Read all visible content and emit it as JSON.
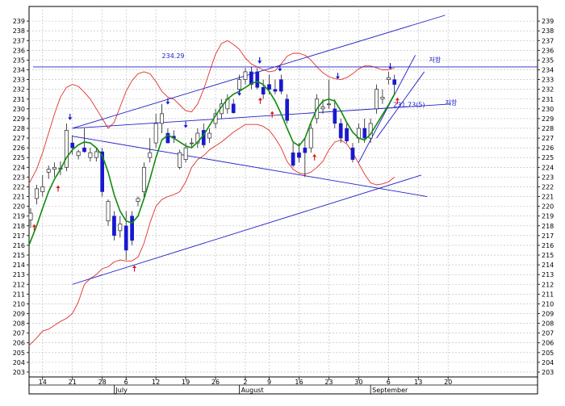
{
  "chart_data": {
    "type": "candlestick",
    "y_range": [
      202.5,
      240.5
    ],
    "y_ticks": [
      203,
      204,
      205,
      206,
      207,
      208,
      209,
      210,
      211,
      212,
      213,
      214,
      215,
      216,
      217,
      218,
      219,
      220,
      221,
      222,
      223,
      224,
      225,
      226,
      227,
      228,
      229,
      230,
      231,
      232,
      233,
      234,
      235,
      236,
      237,
      238,
      239
    ],
    "x_range": [
      0,
      85
    ],
    "x_ticks": [
      {
        "x": 2,
        "label": "14"
      },
      {
        "x": 7,
        "label": "21"
      },
      {
        "x": 12,
        "label": "28"
      },
      {
        "x": 16,
        "label": "6"
      },
      {
        "x": 21,
        "label": "12"
      },
      {
        "x": 26,
        "label": "19"
      },
      {
        "x": 31,
        "label": "26"
      },
      {
        "x": 36,
        "label": "2"
      },
      {
        "x": 40,
        "label": "9"
      },
      {
        "x": 45,
        "label": "16"
      },
      {
        "x": 50,
        "label": "23"
      },
      {
        "x": 55,
        "label": "30"
      },
      {
        "x": 60,
        "label": "6"
      },
      {
        "x": 65,
        "label": "13"
      },
      {
        "x": 70,
        "label": "20"
      }
    ],
    "months": [
      {
        "x": 14,
        "label": "July"
      },
      {
        "x": 35,
        "label": "August"
      },
      {
        "x": 57,
        "label": "September"
      }
    ],
    "candles": [
      {
        "x": 0,
        "o": 218.6,
        "h": 219.8,
        "l": 217.8,
        "c": 219.3
      },
      {
        "x": 1,
        "o": 220.8,
        "h": 222.2,
        "l": 220.2,
        "c": 221.8
      },
      {
        "x": 2,
        "o": 221.5,
        "h": 223.2,
        "l": 221.0,
        "c": 222.0
      },
      {
        "x": 3,
        "o": 223.5,
        "h": 224.2,
        "l": 222.8,
        "c": 223.8
      },
      {
        "x": 4,
        "o": 223.8,
        "h": 224.5,
        "l": 223.0,
        "c": 224.0
      },
      {
        "x": 5,
        "o": 223.8,
        "h": 224.6,
        "l": 223.2,
        "c": 223.9
      },
      {
        "x": 6,
        "o": 224.0,
        "h": 228.5,
        "l": 223.6,
        "c": 227.8
      },
      {
        "x": 7,
        "o": 226.5,
        "h": 227.3,
        "l": 225.3,
        "c": 226.0
      },
      {
        "x": 8,
        "o": 225.2,
        "h": 225.8,
        "l": 224.8,
        "c": 225.6
      },
      {
        "x": 9,
        "o": 226.0,
        "h": 228.0,
        "l": 225.5,
        "c": 225.6
      },
      {
        "x": 10,
        "o": 225.0,
        "h": 226.0,
        "l": 224.6,
        "c": 225.5
      },
      {
        "x": 11,
        "o": 225.0,
        "h": 226.0,
        "l": 224.6,
        "c": 225.6
      },
      {
        "x": 12,
        "o": 225.6,
        "h": 226.0,
        "l": 221.0,
        "c": 221.5
      },
      {
        "x": 13,
        "o": 218.5,
        "h": 220.7,
        "l": 218.0,
        "c": 220.5
      },
      {
        "x": 14,
        "o": 219.0,
        "h": 219.5,
        "l": 216.5,
        "c": 217.0
      },
      {
        "x": 15,
        "o": 217.5,
        "h": 219.0,
        "l": 216.8,
        "c": 218.2
      },
      {
        "x": 16,
        "o": 218.0,
        "h": 219.5,
        "l": 214.5,
        "c": 215.5
      },
      {
        "x": 17,
        "o": 219.0,
        "h": 219.5,
        "l": 216.0,
        "c": 216.5
      },
      {
        "x": 18,
        "o": 220.5,
        "h": 221.0,
        "l": 220.0,
        "c": 220.8
      },
      {
        "x": 19,
        "o": 221.5,
        "h": 224.5,
        "l": 221.0,
        "c": 224.0
      },
      {
        "x": 20,
        "o": 225.0,
        "h": 227.0,
        "l": 224.5,
        "c": 225.5
      },
      {
        "x": 21,
        "o": 226.5,
        "h": 229.5,
        "l": 226.0,
        "c": 228.5
      },
      {
        "x": 22,
        "o": 228.5,
        "h": 230.5,
        "l": 227.5,
        "c": 229.5
      },
      {
        "x": 23,
        "o": 227.5,
        "h": 228.0,
        "l": 226.5,
        "c": 226.5
      },
      {
        "x": 24,
        "o": 227.2,
        "h": 227.8,
        "l": 226.5,
        "c": 227.0
      },
      {
        "x": 25,
        "o": 224.0,
        "h": 225.8,
        "l": 223.8,
        "c": 225.5
      },
      {
        "x": 26,
        "o": 224.8,
        "h": 226.5,
        "l": 224.5,
        "c": 226.0
      },
      {
        "x": 27,
        "o": 226.5,
        "h": 227.0,
        "l": 226.0,
        "c": 226.5
      },
      {
        "x": 28,
        "o": 226.5,
        "h": 228.0,
        "l": 226.0,
        "c": 227.5
      },
      {
        "x": 29,
        "o": 227.8,
        "h": 228.5,
        "l": 226.0,
        "c": 226.3
      },
      {
        "x": 30,
        "o": 227.0,
        "h": 228.0,
        "l": 226.5,
        "c": 227.5
      },
      {
        "x": 31,
        "o": 228.5,
        "h": 230.0,
        "l": 228.0,
        "c": 229.5
      },
      {
        "x": 32,
        "o": 229.5,
        "h": 231.0,
        "l": 229.0,
        "c": 230.5
      },
      {
        "x": 33,
        "o": 230.0,
        "h": 231.5,
        "l": 229.5,
        "c": 231.0
      },
      {
        "x": 34,
        "o": 230.5,
        "h": 231.0,
        "l": 229.5,
        "c": 229.6
      },
      {
        "x": 35,
        "o": 232.0,
        "h": 233.5,
        "l": 231.5,
        "c": 233.0
      },
      {
        "x": 36,
        "o": 233.0,
        "h": 234.2,
        "l": 232.5,
        "c": 233.8
      },
      {
        "x": 37,
        "o": 233.8,
        "h": 234.3,
        "l": 232.0,
        "c": 232.5
      },
      {
        "x": 38,
        "o": 233.8,
        "h": 234.2,
        "l": 232.0,
        "c": 232.2
      },
      {
        "x": 39,
        "o": 232.2,
        "h": 233.0,
        "l": 231.0,
        "c": 231.5
      },
      {
        "x": 40,
        "o": 232.5,
        "h": 233.5,
        "l": 231.5,
        "c": 232.0
      },
      {
        "x": 41,
        "o": 232.0,
        "h": 233.0,
        "l": 231.5,
        "c": 231.8
      },
      {
        "x": 42,
        "o": 233.0,
        "h": 233.5,
        "l": 231.5,
        "c": 231.8
      },
      {
        "x": 43,
        "o": 231.0,
        "h": 231.5,
        "l": 228.5,
        "c": 228.8
      },
      {
        "x": 44,
        "o": 225.5,
        "h": 226.5,
        "l": 224.0,
        "c": 224.2
      },
      {
        "x": 45,
        "o": 225.5,
        "h": 226.5,
        "l": 224.5,
        "c": 225.0
      },
      {
        "x": 46,
        "o": 226.0,
        "h": 227.0,
        "l": 223.0,
        "c": 225.5
      },
      {
        "x": 47,
        "o": 226.0,
        "h": 228.5,
        "l": 225.5,
        "c": 228.0
      },
      {
        "x": 48,
        "o": 229.0,
        "h": 231.5,
        "l": 228.5,
        "c": 231.0
      },
      {
        "x": 49,
        "o": 230.0,
        "h": 231.0,
        "l": 229.5,
        "c": 230.2
      },
      {
        "x": 50,
        "o": 230.5,
        "h": 233.0,
        "l": 230.0,
        "c": 230.5
      },
      {
        "x": 51,
        "o": 230.0,
        "h": 231.0,
        "l": 228.0,
        "c": 228.5
      },
      {
        "x": 52,
        "o": 228.5,
        "h": 229.0,
        "l": 226.5,
        "c": 227.0
      },
      {
        "x": 53,
        "o": 228.0,
        "h": 228.5,
        "l": 226.5,
        "c": 226.7
      },
      {
        "x": 54,
        "o": 226.0,
        "h": 226.5,
        "l": 224.5,
        "c": 224.8
      },
      {
        "x": 55,
        "o": 227.0,
        "h": 228.5,
        "l": 226.5,
        "c": 228.0
      },
      {
        "x": 56,
        "o": 228.0,
        "h": 229.0,
        "l": 226.5,
        "c": 227.0
      },
      {
        "x": 57,
        "o": 227.0,
        "h": 229.0,
        "l": 226.5,
        "c": 228.5
      },
      {
        "x": 58,
        "o": 230.0,
        "h": 232.5,
        "l": 229.5,
        "c": 232.0
      },
      {
        "x": 59,
        "o": 231.0,
        "h": 232.0,
        "l": 230.5,
        "c": 231.2
      },
      {
        "x": 60,
        "o": 233.0,
        "h": 233.8,
        "l": 232.5,
        "c": 233.2
      },
      {
        "x": 61,
        "o": 233.0,
        "h": 233.5,
        "l": 231.5,
        "c": 232.5
      }
    ],
    "moving_average": [
      [
        -0.3,
        216.0
      ],
      [
        1,
        218.0
      ],
      [
        2,
        219.8
      ],
      [
        3,
        221.5
      ],
      [
        4,
        222.8
      ],
      [
        5,
        223.8
      ],
      [
        6,
        225.0
      ],
      [
        7,
        225.8
      ],
      [
        8,
        226.3
      ],
      [
        9,
        226.6
      ],
      [
        10,
        226.5
      ],
      [
        11,
        226.0
      ],
      [
        12,
        225.2
      ],
      [
        13,
        223.5
      ],
      [
        14,
        221.2
      ],
      [
        15,
        219.5
      ],
      [
        16,
        218.5
      ],
      [
        17,
        218.3
      ],
      [
        18,
        219.0
      ],
      [
        19,
        220.8
      ],
      [
        20,
        222.8
      ],
      [
        21,
        225.0
      ],
      [
        22,
        226.8
      ],
      [
        23,
        227.3
      ],
      [
        24,
        227.0
      ],
      [
        25,
        226.6
      ],
      [
        26,
        226.2
      ],
      [
        27,
        226.0
      ],
      [
        28,
        226.6
      ],
      [
        29,
        227.3
      ],
      [
        30,
        228.3
      ],
      [
        31,
        229.3
      ],
      [
        32,
        230.2
      ],
      [
        33,
        231.0
      ],
      [
        34,
        231.5
      ],
      [
        35,
        231.8
      ],
      [
        36,
        232.2
      ],
      [
        37,
        232.6
      ],
      [
        38,
        232.8
      ],
      [
        39,
        232.5
      ],
      [
        40,
        231.8
      ],
      [
        41,
        230.8
      ],
      [
        42,
        229.5
      ],
      [
        43,
        228.0
      ],
      [
        44,
        226.6
      ],
      [
        45,
        226.2
      ],
      [
        46,
        227.0
      ],
      [
        47,
        228.6
      ],
      [
        48,
        230.0
      ],
      [
        49,
        230.8
      ],
      [
        50,
        231.0
      ],
      [
        51,
        230.8
      ],
      [
        52,
        229.8
      ],
      [
        53,
        228.6
      ],
      [
        54,
        227.6
      ],
      [
        55,
        227.0
      ],
      [
        56,
        226.8
      ],
      [
        57,
        227.4
      ],
      [
        58,
        228.4
      ],
      [
        59,
        229.4
      ],
      [
        60,
        230.4
      ],
      [
        61,
        231.5
      ]
    ],
    "upper_band": [
      [
        -0.3,
        222.3
      ],
      [
        1,
        223.8
      ],
      [
        2,
        225.5
      ],
      [
        3,
        227.5
      ],
      [
        4,
        229.5
      ],
      [
        5,
        231.2
      ],
      [
        6,
        232.2
      ],
      [
        7,
        232.5
      ],
      [
        8,
        232.3
      ],
      [
        9,
        231.7
      ],
      [
        10,
        231.0
      ],
      [
        11,
        230.0
      ],
      [
        12,
        229.0
      ],
      [
        13,
        228.0
      ],
      [
        14,
        228.6
      ],
      [
        15,
        230.2
      ],
      [
        16,
        231.8
      ],
      [
        17,
        232.9
      ],
      [
        18,
        233.6
      ],
      [
        19,
        233.8
      ],
      [
        20,
        233.6
      ],
      [
        21,
        232.8
      ],
      [
        22,
        231.8
      ],
      [
        23,
        231.2
      ],
      [
        24,
        231.0
      ],
      [
        25,
        230.4
      ],
      [
        26,
        229.8
      ],
      [
        27,
        229.7
      ],
      [
        28,
        230.5
      ],
      [
        29,
        232.0
      ],
      [
        30,
        233.8
      ],
      [
        31,
        235.6
      ],
      [
        32,
        236.7
      ],
      [
        33,
        237.0
      ],
      [
        34,
        236.6
      ],
      [
        35,
        236.1
      ],
      [
        36,
        235.2
      ],
      [
        37,
        234.6
      ],
      [
        38,
        234.3
      ],
      [
        39,
        234.0
      ],
      [
        40,
        233.8
      ],
      [
        41,
        233.9
      ],
      [
        42,
        234.6
      ],
      [
        43,
        235.4
      ],
      [
        44,
        235.7
      ],
      [
        45,
        235.7
      ],
      [
        46,
        235.5
      ],
      [
        47,
        235.0
      ],
      [
        48,
        234.3
      ],
      [
        49,
        233.7
      ],
      [
        50,
        233.3
      ],
      [
        51,
        233.1
      ],
      [
        52,
        233.0
      ],
      [
        53,
        233.2
      ],
      [
        54,
        233.6
      ],
      [
        55,
        234.1
      ],
      [
        56,
        234.4
      ],
      [
        57,
        234.4
      ],
      [
        58,
        234.2
      ],
      [
        59,
        234.0
      ],
      [
        60,
        234.0
      ],
      [
        61,
        234.2
      ]
    ],
    "lower_band": [
      [
        -0.3,
        205.7
      ],
      [
        1,
        206.5
      ],
      [
        2,
        207.2
      ],
      [
        3,
        207.4
      ],
      [
        4,
        207.8
      ],
      [
        5,
        208.2
      ],
      [
        6,
        208.5
      ],
      [
        7,
        209.0
      ],
      [
        8,
        210.2
      ],
      [
        9,
        212.0
      ],
      [
        10,
        212.6
      ],
      [
        11,
        213.0
      ],
      [
        12,
        213.6
      ],
      [
        13,
        213.8
      ],
      [
        14,
        214.3
      ],
      [
        15,
        214.5
      ],
      [
        16,
        214.4
      ],
      [
        17,
        214.4
      ],
      [
        18,
        214.8
      ],
      [
        19,
        216.2
      ],
      [
        20,
        218.3
      ],
      [
        21,
        220.0
      ],
      [
        22,
        220.7
      ],
      [
        23,
        221.0
      ],
      [
        24,
        221.2
      ],
      [
        25,
        221.5
      ],
      [
        26,
        222.5
      ],
      [
        27,
        224.0
      ],
      [
        28,
        224.8
      ],
      [
        29,
        225.2
      ],
      [
        30,
        225.8
      ],
      [
        31,
        226.2
      ],
      [
        32,
        226.6
      ],
      [
        33,
        227.1
      ],
      [
        34,
        227.6
      ],
      [
        35,
        228.0
      ],
      [
        36,
        228.4
      ],
      [
        37,
        228.4
      ],
      [
        38,
        228.4
      ],
      [
        39,
        228.2
      ],
      [
        40,
        227.8
      ],
      [
        41,
        227.0
      ],
      [
        42,
        226.0
      ],
      [
        43,
        224.6
      ],
      [
        44,
        223.8
      ],
      [
        45,
        223.4
      ],
      [
        46,
        223.3
      ],
      [
        47,
        223.5
      ],
      [
        48,
        224.0
      ],
      [
        49,
        224.6
      ],
      [
        50,
        225.8
      ],
      [
        51,
        226.6
      ],
      [
        52,
        226.8
      ],
      [
        53,
        226.4
      ],
      [
        54,
        225.5
      ],
      [
        55,
        224.4
      ],
      [
        56,
        223.3
      ],
      [
        57,
        222.4
      ],
      [
        58,
        222.2
      ],
      [
        59,
        222.3
      ],
      [
        60,
        222.5
      ],
      [
        61,
        223.0
      ]
    ],
    "lines": [
      {
        "name": "resistance-horizontal",
        "points": [
          [
            0.4,
            234.3
          ],
          [
            85,
            234.3
          ]
        ]
      },
      {
        "name": "channel-upper-top",
        "points": [
          [
            7,
            228.0
          ],
          [
            69.5,
            239.6
          ]
        ]
      },
      {
        "name": "channel-upper-bottom",
        "points": [
          [
            7,
            228.0
          ],
          [
            70.5,
            230.5
          ]
        ]
      },
      {
        "name": "channel-lower-top",
        "points": [
          [
            7,
            227.2
          ],
          [
            66.5,
            221.0
          ]
        ]
      },
      {
        "name": "channel-lower-bottom",
        "points": [
          [
            7,
            212.0
          ],
          [
            65.5,
            223.2
          ]
        ]
      },
      {
        "name": "short-channel-top",
        "points": [
          [
            55,
            224.5
          ],
          [
            64.5,
            235.5
          ]
        ]
      },
      {
        "name": "short-channel-bottom",
        "points": [
          [
            58,
            227.0
          ],
          [
            66,
            233.8
          ]
        ]
      }
    ],
    "up_arrows": [
      [
        0.6,
        218.0
      ],
      [
        4.6,
        222.0
      ],
      [
        17.4,
        213.8
      ],
      [
        38.5,
        231.0
      ],
      [
        40.5,
        229.6
      ],
      [
        47.6,
        225.2
      ],
      [
        61.5,
        231.0
      ]
    ],
    "down_arrows": [
      [
        6.6,
        229.0
      ],
      [
        23,
        230.6
      ],
      [
        26,
        228.2
      ],
      [
        35,
        231.5
      ],
      [
        38.4,
        234.8
      ],
      [
        41.8,
        234.0
      ],
      [
        51.5,
        233.2
      ],
      [
        60.3,
        234.2
      ]
    ],
    "labels": [
      {
        "text": "234.29",
        "x": 22,
        "y": 235.2
      },
      {
        "text": "231.73(5)",
        "x": 60.8,
        "y": 230.2
      },
      {
        "text": "저항",
        "x": 66.8,
        "y": 234.8
      },
      {
        "text": "저항",
        "x": 69.5,
        "y": 230.4
      }
    ]
  }
}
